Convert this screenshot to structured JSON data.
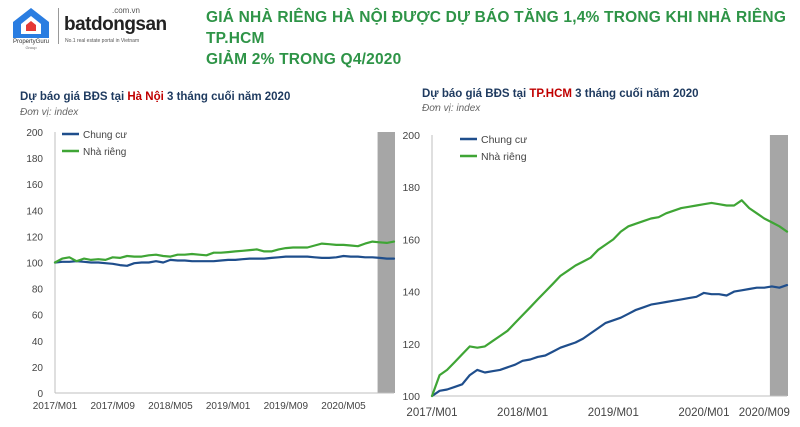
{
  "header": {
    "logo_propertyguru": "PropertyGuru",
    "logo_propertyguru_sub": "Group",
    "logo_domain": ".com.vn",
    "logo_brand": "batdongsan",
    "logo_tagline": "No.1 real estate portal in Vietnam",
    "headline_line1": "GIÁ NHÀ RIÊNG HÀ NỘI ĐƯỢC DỰ BÁO TĂNG 1,4% TRONG KHI NHÀ RIÊNG TP.HCM",
    "headline_line2": "GIẢM 2% TRONG Q4/2020"
  },
  "colors": {
    "headline": "#2e9447",
    "title": "#1e3a5f",
    "city": "#c00000",
    "chung_cu": "#1f4e8c",
    "nha_rieng": "#3fa535",
    "forecast_band": "#a6a6a6"
  },
  "chart_data": [
    {
      "type": "line",
      "title_prefix": "Dự báo giá BĐS tại ",
      "title_city": "Hà Nội",
      "title_suffix": " 3 tháng cuối năm 2020",
      "unit_label": "Đơn vị: index",
      "ylim": [
        0,
        200
      ],
      "yticks": [
        0,
        20,
        40,
        60,
        80,
        100,
        120,
        140,
        160,
        180,
        200
      ],
      "x_tick_labels": [
        "2017/M01",
        "2017/M09",
        "2018/M05",
        "2019/M01",
        "2019/M09",
        "2020/M05"
      ],
      "x_tick_index": [
        0,
        8,
        16,
        24,
        32,
        40
      ],
      "n_points": 48,
      "forecast_start_index": 45,
      "legend_position": "top-left",
      "grid": false,
      "series": [
        {
          "name": "Chung cư",
          "color": "#1f4e8c",
          "values": [
            100,
            100.5,
            100.5,
            101,
            100.5,
            100,
            100,
            99.5,
            99,
            98,
            97.5,
            99.5,
            100,
            100,
            101,
            100,
            102,
            101.5,
            101.5,
            101,
            101,
            101,
            101,
            101.5,
            102,
            102,
            102.5,
            103,
            103,
            103,
            103.5,
            104,
            104.5,
            104.5,
            104.5,
            104.5,
            104,
            103.5,
            103.5,
            104,
            105,
            104.5,
            104.5,
            104,
            104,
            103.5,
            103,
            103
          ]
        },
        {
          "name": "Nhà riêng",
          "color": "#3fa535",
          "values": [
            100,
            103,
            104,
            101,
            103,
            102,
            102.5,
            102,
            104,
            103.5,
            105,
            104.5,
            104.5,
            105.5,
            106,
            105,
            104.5,
            106,
            106,
            106.5,
            106,
            105.5,
            107.5,
            107.5,
            108,
            108.5,
            109,
            109.5,
            110,
            108.5,
            108.5,
            110,
            111,
            111.5,
            111.5,
            111.5,
            113,
            114.5,
            114,
            113.5,
            113.5,
            113,
            112.5,
            114.5,
            116,
            115.5,
            115,
            116
          ]
        }
      ]
    },
    {
      "type": "line",
      "title_prefix": "Dự báo giá BĐS tại ",
      "title_city": "TP.HCM",
      "title_suffix": " 3 tháng cuối năm 2020",
      "unit_label": "Đơn vị: index",
      "ylim": [
        100,
        200
      ],
      "yticks": [
        100,
        120,
        140,
        160,
        180,
        200
      ],
      "x_tick_labels": [
        "2017/M01",
        "2018/M01",
        "2019/M01",
        "2020/M01",
        "2020/M09"
      ],
      "x_tick_index": [
        0,
        12,
        24,
        36,
        44
      ],
      "n_points": 48,
      "forecast_start_index": 45,
      "legend_position": "top-left",
      "grid": false,
      "series": [
        {
          "name": "Chung cư",
          "color": "#1f4e8c",
          "values": [
            100,
            102,
            102.5,
            103.5,
            104.5,
            108,
            110,
            109,
            109.5,
            110,
            111,
            112,
            113.5,
            114,
            115,
            115.5,
            117,
            118.5,
            119.5,
            120.5,
            122,
            124,
            126,
            128,
            129,
            130,
            131.5,
            133,
            134,
            135,
            135.5,
            136,
            136.5,
            137,
            137.5,
            138,
            139.5,
            139,
            139,
            138.5,
            140,
            140.5,
            141,
            141.5,
            141.5,
            142,
            141.5,
            142.5
          ]
        },
        {
          "name": "Nhà riêng",
          "color": "#3fa535",
          "values": [
            100,
            108,
            110,
            113,
            116,
            119,
            118.5,
            119,
            121,
            123,
            125,
            128,
            131,
            134,
            137,
            140,
            143,
            146,
            148,
            150,
            151.5,
            153,
            156,
            158,
            160,
            163,
            165,
            166,
            167,
            168,
            168.5,
            170,
            171,
            172,
            172.5,
            173,
            173.5,
            174,
            173.5,
            173,
            173,
            175,
            172,
            170,
            168,
            166.5,
            165,
            163
          ]
        }
      ]
    }
  ]
}
